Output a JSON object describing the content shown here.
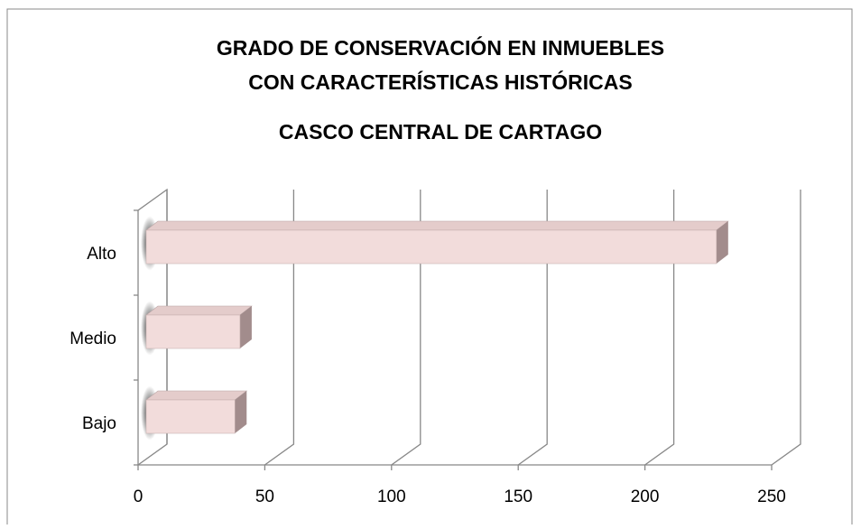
{
  "chart_data": {
    "type": "bar3d",
    "orientation": "horizontal",
    "title": [
      "GRADO DE CONSERVACIÓN EN INMUEBLES",
      "CON CARACTERÍSTICAS HISTÓRICAS"
    ],
    "subtitle": "CASCO CENTRAL DE CARTAGO",
    "categories": [
      "Alto",
      "Medio",
      "Bajo"
    ],
    "values": [
      225,
      37,
      35
    ],
    "color": "#f2dcdb",
    "xlim": [
      0,
      250
    ],
    "xticks": [
      0,
      50,
      100,
      150,
      200,
      250
    ],
    "grid": true
  }
}
